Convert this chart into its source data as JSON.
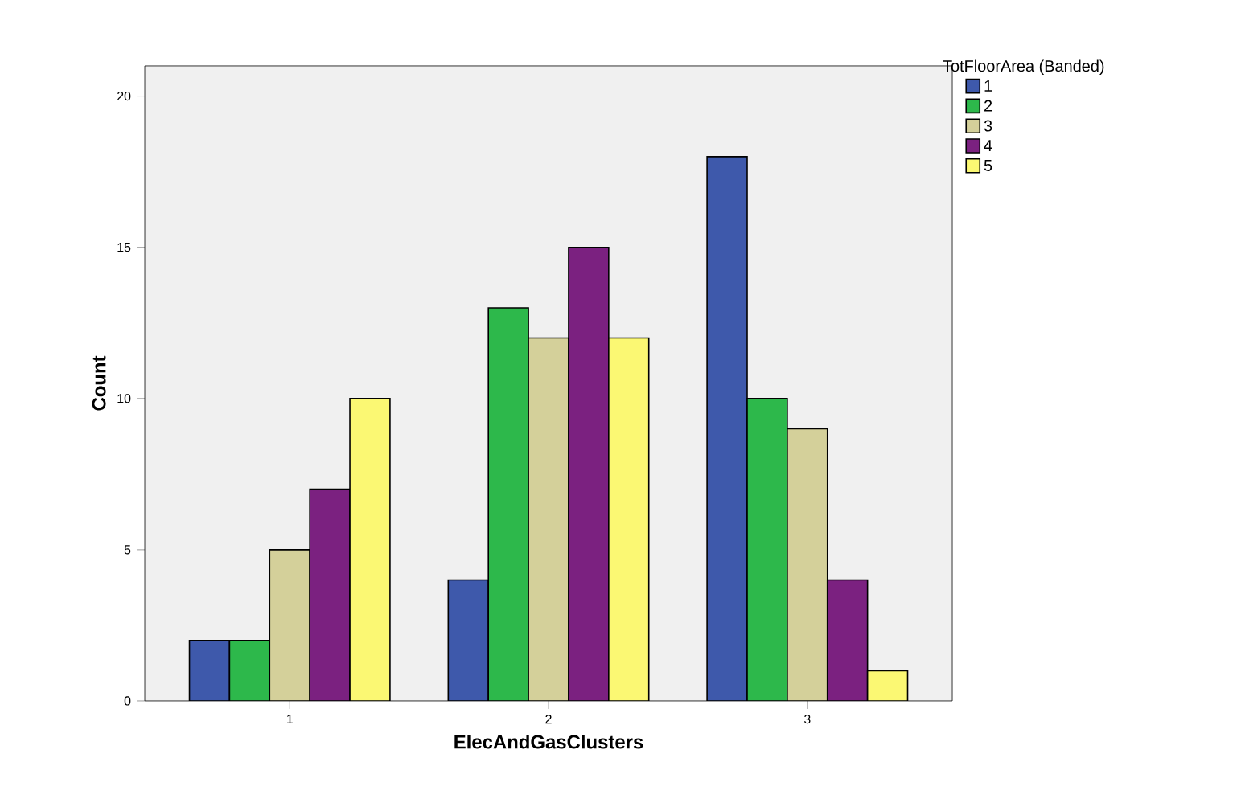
{
  "chart_data": {
    "type": "bar",
    "xlabel": "ElecAndGasClusters",
    "ylabel": "Count",
    "legend_title": "TotFloorArea (Banded)",
    "categories": [
      "1",
      "2",
      "3"
    ],
    "series": [
      {
        "name": "1",
        "color": "#3e59ab",
        "values": [
          2,
          4,
          18
        ]
      },
      {
        "name": "2",
        "color": "#2db84b",
        "values": [
          2,
          13,
          10
        ]
      },
      {
        "name": "3",
        "color": "#d4d09a",
        "values": [
          5,
          12,
          9
        ]
      },
      {
        "name": "4",
        "color": "#7b2180",
        "values": [
          7,
          15,
          4
        ]
      },
      {
        "name": "5",
        "color": "#fbf873",
        "values": [
          10,
          12,
          1
        ]
      }
    ],
    "ylim": [
      0,
      21
    ],
    "yticks": [
      0,
      5,
      10,
      15,
      20
    ],
    "grid": false,
    "legend": "top right"
  }
}
